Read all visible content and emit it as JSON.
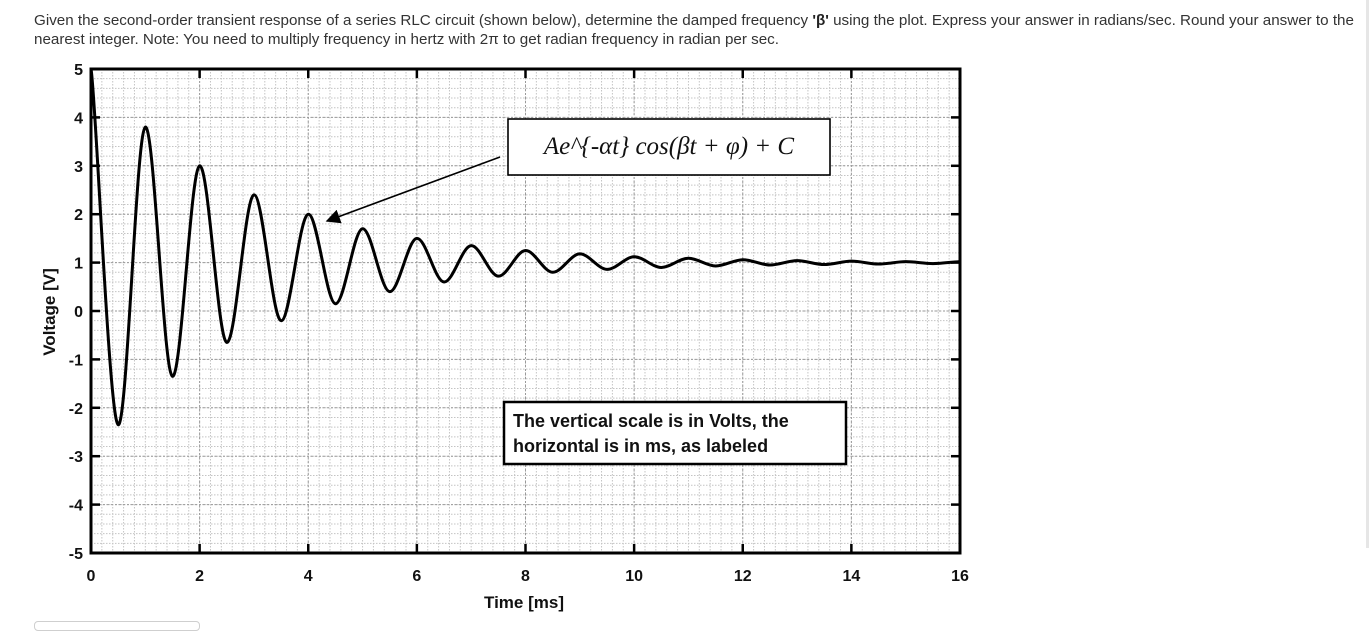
{
  "question": {
    "part1": "Given the second-order transient response of a series RLC circuit (shown below), determine the damped frequency ",
    "symbol": "'β'",
    "part2": " using the plot. Express your answer in radians/sec. Round your answer to the nearest integer. Note: You need to multiply frequency in hertz with 2π to get radian frequency in radian per sec."
  },
  "chart_data": {
    "type": "line",
    "title": "",
    "xlabel": "Time [ms]",
    "ylabel": "Voltage [V]",
    "xlim": [
      0,
      16
    ],
    "ylim": [
      -5,
      5
    ],
    "xticks": [
      0,
      2,
      4,
      6,
      8,
      10,
      12,
      14,
      16
    ],
    "yticks": [
      -5,
      -4,
      -3,
      -2,
      -1,
      0,
      1,
      2,
      3,
      4,
      5
    ],
    "grid": true,
    "series": [
      {
        "color": "#000000",
        "x": [
          0,
          0.5,
          1.0,
          1.5,
          2.0,
          2.5,
          3.0,
          3.5,
          4.0,
          4.5,
          5.0,
          5.5,
          6.0,
          6.5,
          7.0,
          7.5,
          8.0,
          8.5,
          9.0,
          9.5,
          10.0,
          10.5,
          11.0,
          11.5,
          12.0,
          12.5,
          13.0,
          13.5,
          14.0,
          14.5,
          15.0,
          15.5,
          16.0
        ],
        "y": [
          5.0,
          -2.35,
          3.8,
          -1.35,
          3.0,
          -0.65,
          2.4,
          -0.2,
          2.0,
          0.15,
          1.7,
          0.4,
          1.5,
          0.6,
          1.35,
          0.72,
          1.25,
          0.8,
          1.18,
          0.86,
          1.12,
          0.9,
          1.09,
          0.93,
          1.06,
          0.95,
          1.04,
          0.96,
          1.03,
          0.97,
          1.02,
          0.98,
          1.02
        ]
      }
    ],
    "annotations": {
      "formula": "Ae^{-αt} cos(βt + φ) + C",
      "formula_arrow_target": [
        4.4,
        1.9
      ],
      "note_line1": "The vertical scale is in Volts, the",
      "note_line2": "horizontal is in ms, as labeled"
    }
  }
}
